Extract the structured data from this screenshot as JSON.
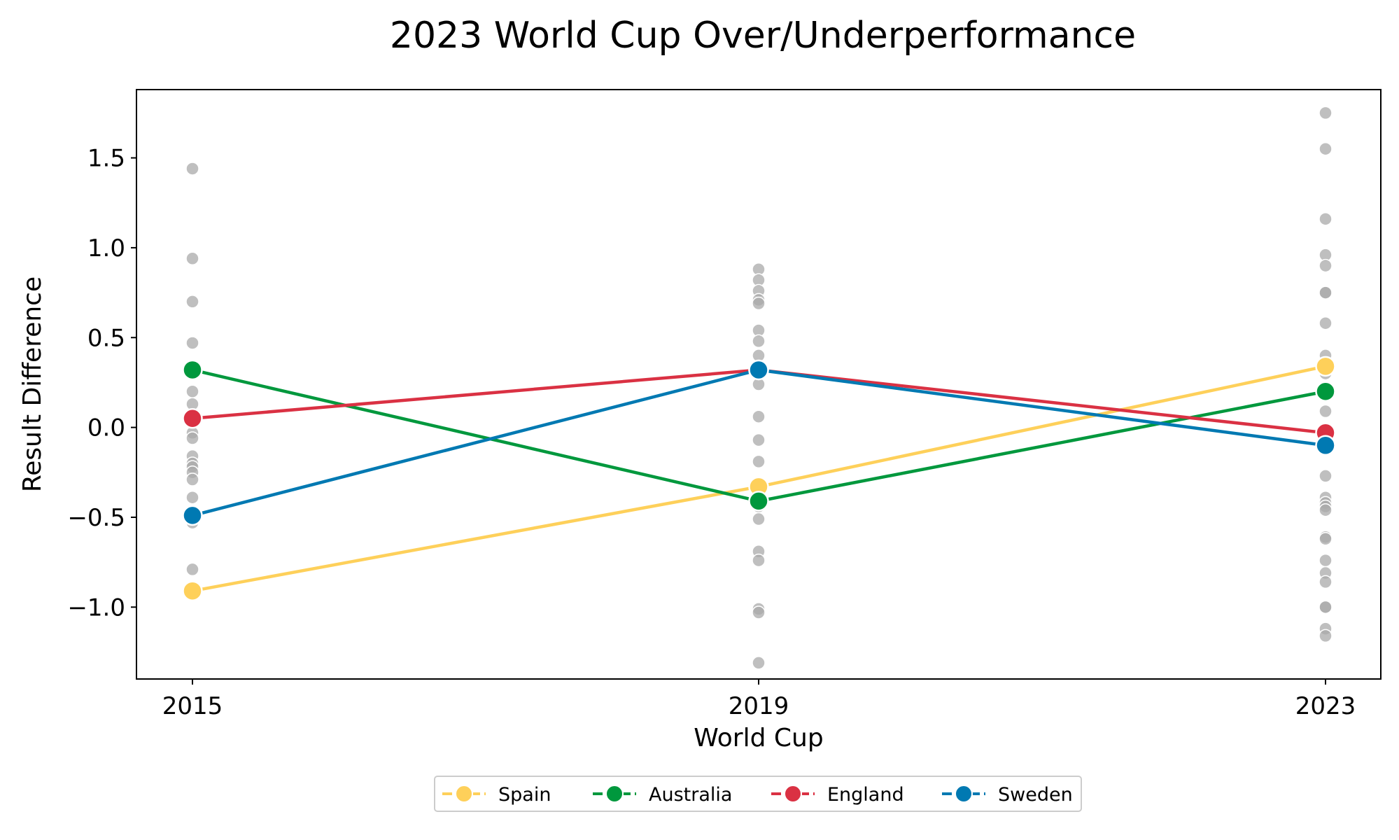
{
  "chart_data": {
    "type": "line",
    "title": "2023 World Cup Over/Underperformance",
    "xlabel": "World Cup",
    "ylabel": "Result Difference",
    "categories": [
      "2015",
      "2019",
      "2023"
    ],
    "ylim": [
      -1.4,
      1.88
    ],
    "yticks": [
      {
        "value": 1.5,
        "label": "1.5"
      },
      {
        "value": 1.0,
        "label": "1.0"
      },
      {
        "value": 0.5,
        "label": "0.5"
      },
      {
        "value": 0.0,
        "label": "0.0"
      },
      {
        "value": -0.5,
        "label": "−0.5"
      },
      {
        "value": -1.0,
        "label": "−1.0"
      }
    ],
    "grid": false,
    "legend_position": "bottom-center",
    "series": [
      {
        "name": "Spain",
        "color": "#FED05A",
        "values": [
          -0.91,
          -0.33,
          0.34
        ]
      },
      {
        "name": "Australia",
        "color": "#00983D",
        "values": [
          0.32,
          -0.41,
          0.2
        ]
      },
      {
        "name": "England",
        "color": "#DA3143",
        "values": [
          0.05,
          0.32,
          -0.03
        ]
      },
      {
        "name": "Sweden",
        "color": "#0079B2",
        "values": [
          -0.49,
          0.32,
          -0.1
        ]
      }
    ],
    "background_points": {
      "color": "#AAAAAA",
      "groups": [
        {
          "category": "2015",
          "values": [
            1.44,
            0.94,
            0.7,
            0.47,
            0.2,
            0.13,
            0.05,
            -0.03,
            -0.06,
            -0.16,
            -0.2,
            -0.22,
            -0.25,
            -0.29,
            -0.39,
            -0.47,
            -0.53,
            -0.79
          ]
        },
        {
          "category": "2019",
          "values": [
            0.88,
            0.82,
            0.76,
            0.71,
            0.69,
            0.54,
            0.48,
            0.4,
            0.31,
            0.24,
            0.06,
            -0.07,
            -0.19,
            -0.44,
            -0.51,
            -0.69,
            -0.74,
            -1.01,
            -1.03,
            -1.31
          ]
        },
        {
          "category": "2023",
          "values": [
            1.75,
            1.55,
            1.16,
            0.96,
            0.9,
            0.75,
            0.75,
            0.58,
            0.4,
            0.3,
            0.18,
            0.09,
            -0.27,
            -0.39,
            -0.42,
            -0.44,
            -0.46,
            -0.61,
            -0.62,
            -0.74,
            -0.81,
            -0.86,
            -1.0,
            -1.0,
            -1.12,
            -1.16
          ]
        }
      ]
    }
  }
}
